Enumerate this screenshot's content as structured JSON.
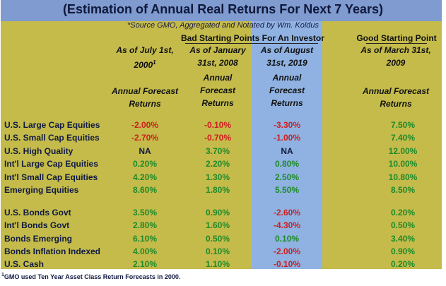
{
  "title": "(Estimation of Annual Real Returns For Next 7 Years)",
  "source": "*Source GMO, Aggregated and Notated by Wm. Koldus",
  "group_bad": "Bad Starting Points For An Investor",
  "group_good": "Good Starting Point",
  "columns": [
    {
      "date_line1": "As of July 1st,",
      "date_line2": "2000",
      "date_sup": "1",
      "forecast_line1": "Annual Forecast",
      "forecast_line2": "Returns"
    },
    {
      "date_line1": "As of January",
      "date_line2": "31st, 2008",
      "date_sup": "",
      "forecast_line1": "Annual",
      "forecast_line2": "Forecast",
      "forecast_line3": "Returns"
    },
    {
      "date_line1": "As of August",
      "date_line2": "31st, 2019",
      "date_sup": "",
      "forecast_line1": "Annual",
      "forecast_line2": "Forecast",
      "forecast_line3": "Returns"
    },
    {
      "date_line1": "As of March 31st,",
      "date_line2": "2009",
      "date_sup": "",
      "forecast_line1": "Annual Forecast",
      "forecast_line2": "Returns"
    }
  ],
  "rows": [
    {
      "label": "U.S. Large Cap Equities",
      "values": [
        "-2.00%",
        "-0.10%",
        "-3.30%",
        "7.50%"
      ]
    },
    {
      "label": "U.S. Small Cap Equities",
      "values": [
        "-2.70%",
        "-0.70%",
        "-1.00%",
        "7.40%"
      ]
    },
    {
      "label": "U.S. High Quality",
      "values": [
        "NA",
        "3.70%",
        "NA",
        "12.00%"
      ]
    },
    {
      "label": "Int'l Large Cap Equities",
      "values": [
        "0.20%",
        "2.20%",
        "0.80%",
        "10.00%"
      ]
    },
    {
      "label": "Int'l Small Cap Equities",
      "values": [
        "4.20%",
        "1.30%",
        "2.50%",
        "10.80%"
      ]
    },
    {
      "label": "Emerging Equities",
      "values": [
        "8.60%",
        "1.80%",
        "5.50%",
        "8.50%"
      ]
    },
    {
      "label": "U.S. Bonds Govt",
      "values": [
        "3.50%",
        "0.90%",
        "-2.60%",
        "0.20%"
      ]
    },
    {
      "label": "Int'l Bonds Govt",
      "values": [
        "2.80%",
        "1.60%",
        "-4.30%",
        "0.50%"
      ]
    },
    {
      "label": "Bonds Emerging",
      "values": [
        "6.10%",
        "0.50%",
        "0.10%",
        "3.40%"
      ]
    },
    {
      "label": "Bonds Inflation Indexed",
      "values": [
        "4.00%",
        "0.10%",
        "-2.00%",
        "0.90%"
      ]
    },
    {
      "label": "U.S. Cash",
      "values": [
        "2.10%",
        "1.10%",
        "-0.10%",
        "0.20%"
      ]
    }
  ],
  "footnote_marker": "1",
  "footnote": "GMO used Ten Year Asset Class Return Forecasts in 2000.",
  "colors": {
    "title_bar": "#7f9bd0",
    "panel": "#c4bb4b",
    "highlight_column": "#8fb2e2",
    "positive": "#1e8a2a",
    "negative": "#cc1f1f"
  }
}
